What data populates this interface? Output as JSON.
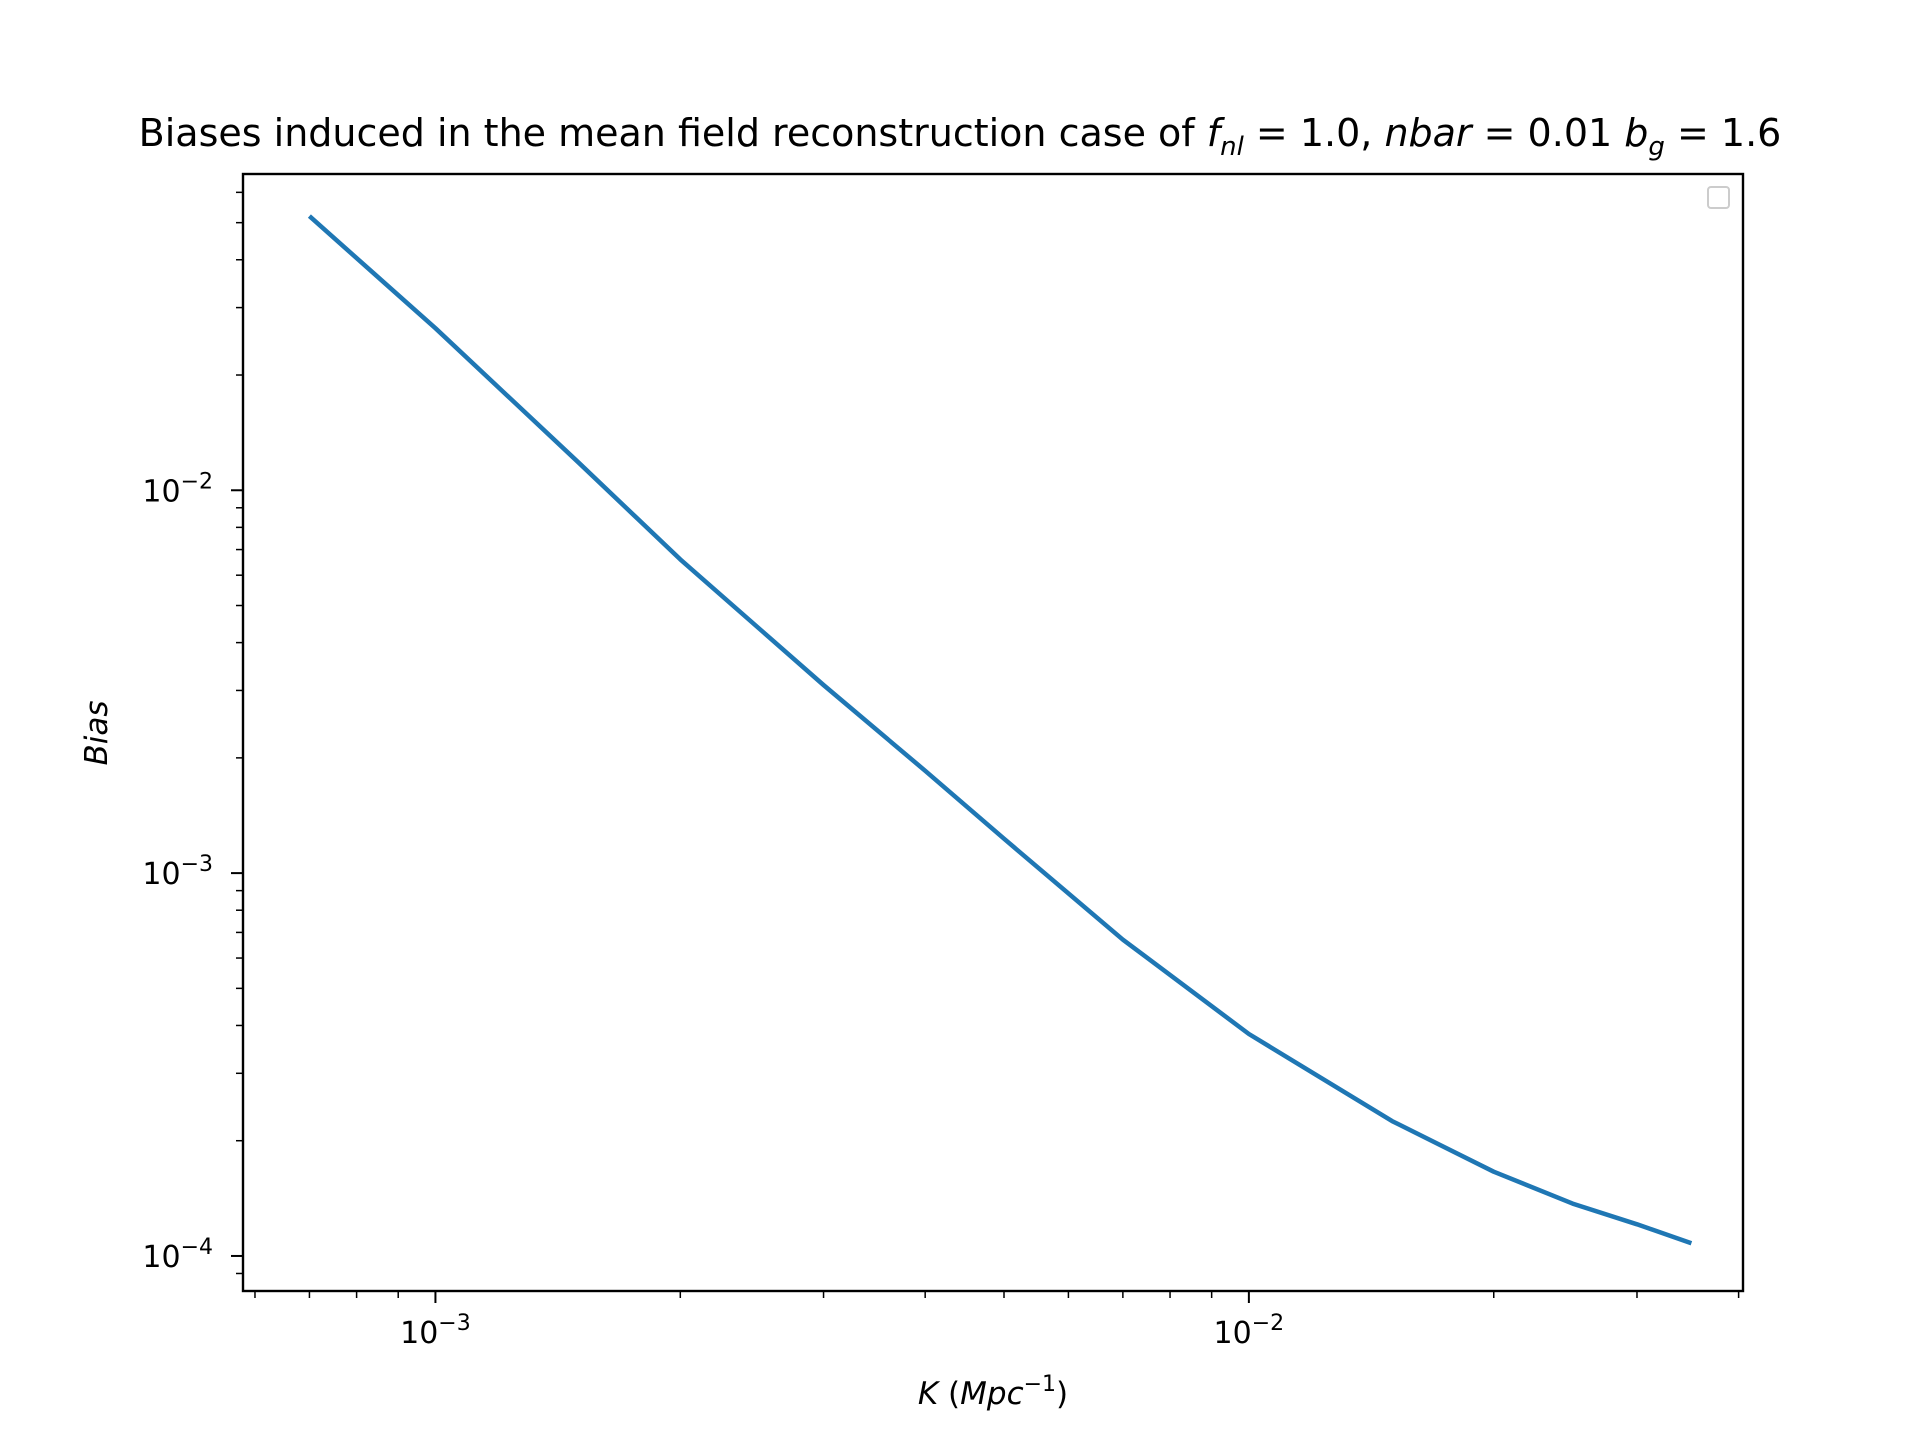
{
  "chart_data": {
    "type": "line",
    "title": {
      "prefix": "Biases induced in the mean field reconstruction case of ",
      "fnl_var": "f",
      "fnl_sub": "nl",
      "fnl_eq": " = 1.0, ",
      "nbar_var": "nbar",
      "nbar_eq": " = 0.01 ",
      "bg_var": "b",
      "bg_sub": "g",
      "bg_eq": " = 1.6"
    },
    "xlabel": {
      "var": "K",
      "open": " (",
      "unit": "Mpc",
      "exp": "−1",
      "close": ")"
    },
    "ylabel": "Bias",
    "xscale": "log",
    "yscale": "log",
    "xlim": [
      0.00058,
      0.0405
    ],
    "ylim": [
      8.1e-05,
      0.067
    ],
    "x_ticks": [
      {
        "value": 0.001,
        "base": "10",
        "exp": "−3"
      },
      {
        "value": 0.01,
        "base": "10",
        "exp": "−2"
      }
    ],
    "y_ticks": [
      {
        "value": 0.0001,
        "base": "10",
        "exp": "−4"
      },
      {
        "value": 0.001,
        "base": "10",
        "exp": "−3"
      },
      {
        "value": 0.01,
        "base": "10",
        "exp": "−2"
      }
    ],
    "grid": false,
    "legend": {
      "placement": "upper-right",
      "entries": []
    },
    "series": [
      {
        "color": "#1f77b4",
        "x": [
          0.0007,
          0.001,
          0.0015,
          0.002,
          0.003,
          0.004,
          0.005,
          0.007,
          0.01,
          0.015,
          0.02,
          0.025,
          0.03,
          0.035
        ],
        "y": [
          0.052,
          0.0265,
          0.0118,
          0.0066,
          0.0031,
          0.00185,
          0.00123,
          0.00067,
          0.00038,
          0.000225,
          0.000166,
          0.000137,
          0.000121,
          0.000108
        ]
      }
    ]
  }
}
